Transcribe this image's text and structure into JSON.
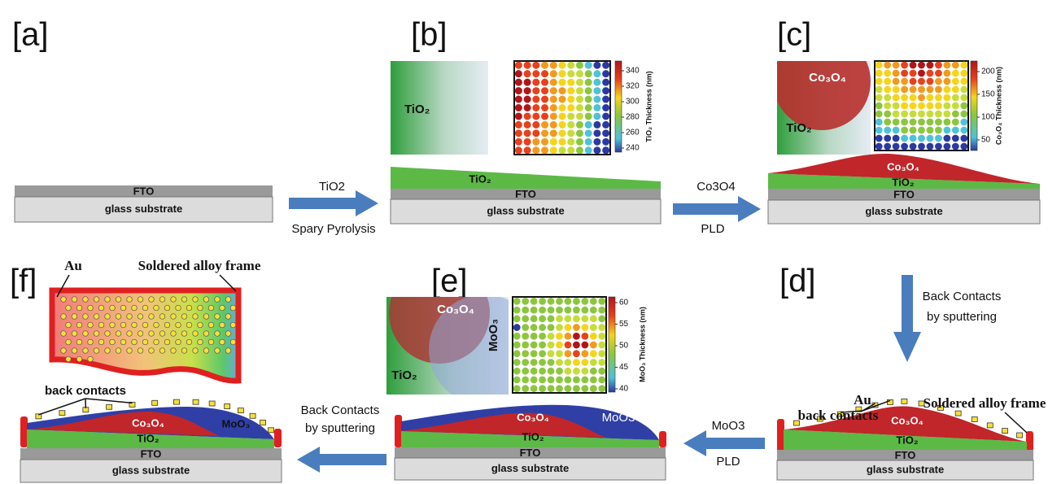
{
  "panels": {
    "a": {
      "label": "[a]",
      "layers": {
        "fto": "FTO",
        "glass": "glass substrate"
      }
    },
    "b": {
      "label": "[b]",
      "layers": {
        "tio2": "TiO₂",
        "fto": "FTO",
        "glass": "glass substrate"
      },
      "map": {
        "tio2": "TiO₂"
      },
      "colorbar": {
        "title": "TiO₂ Thickness (nm)",
        "ticks": [
          340,
          320,
          300,
          280,
          260,
          240
        ]
      }
    },
    "c": {
      "label": "[c]",
      "layers": {
        "co3o4": "Co₃O₄",
        "tio2": "TiO₂",
        "fto": "FTO",
        "glass": "glass substrate"
      },
      "map": {
        "co3o4": "Co₃O₄",
        "tio2": "TiO₂"
      },
      "colorbar": {
        "title": "Co₃O₄ Thickness (nm)",
        "ticks": [
          200,
          150,
          100,
          50
        ]
      }
    },
    "d": {
      "label": "[d]",
      "annotations": {
        "au": "Au",
        "back_contacts": "back contacts",
        "frame": "Soldered alloy frame"
      },
      "layers": {
        "co3o4": "Co₃O₄",
        "tio2": "TiO₂",
        "fto": "FTO",
        "glass": "glass substrate"
      }
    },
    "e": {
      "label": "[e]",
      "layers": {
        "co3o4": "Co₃O₄",
        "moo3": "MoO3",
        "tio2": "TiO₂",
        "fto": "FTO",
        "glass": "glass substrate"
      },
      "map": {
        "co3o4": "Co₃O₄",
        "moo3": "MoO₃",
        "tio2": "TiO₂"
      },
      "colorbar": {
        "title": "MoO₃ Thickness (nm)",
        "ticks": [
          60,
          55,
          50,
          45,
          40
        ]
      }
    },
    "f": {
      "label": "[f]",
      "annotations": {
        "au": "Au",
        "frame": "Soldered alloy frame",
        "back_contacts": "back contacts"
      },
      "layers": {
        "co3o4": "Co₃O₄",
        "moo3": "MoO₃",
        "tio2": "TiO₂",
        "fto": "FTO",
        "glass": "glass substrate"
      }
    }
  },
  "steps": [
    {
      "material": "TiO2",
      "method": "Spary Pyrolysis"
    },
    {
      "material": "Co3O4",
      "method": "PLD"
    },
    {
      "method": [
        "Back Contacts",
        "by sputtering"
      ]
    },
    {
      "material": "MoO3",
      "method": "PLD"
    },
    {
      "method": [
        "Back Contacts",
        "by sputtering"
      ]
    }
  ]
}
